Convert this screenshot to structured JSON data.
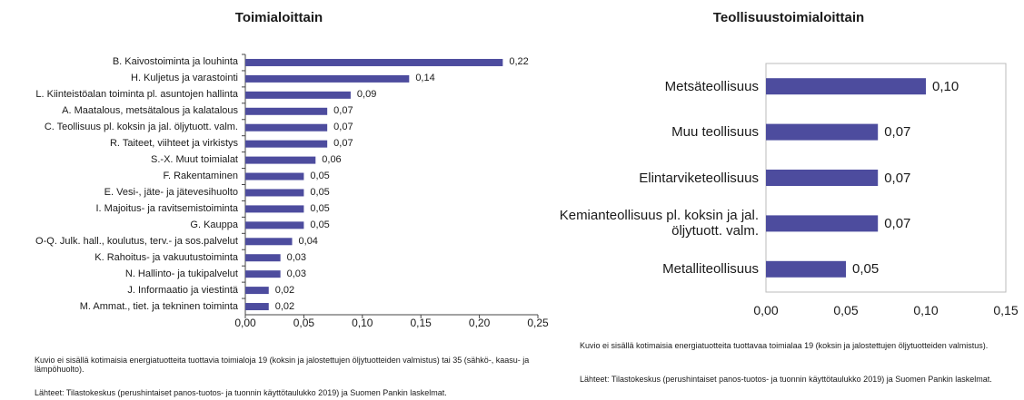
{
  "chart_data": [
    {
      "type": "bar",
      "orientation": "horizontal",
      "title": "Toimialoittain",
      "categories": [
        "B. Kaivostoiminta ja louhinta",
        "H. Kuljetus ja varastointi",
        "L. Kiinteistöalan toiminta pl. asuntojen hallinta",
        "A. Maatalous, metsätalous ja kalatalous",
        "C. Teollisuus pl. koksin ja jal. öljytuott. valm.",
        "R. Taiteet, viihteet ja virkistys",
        "S.-X. Muut toimialat",
        "F. Rakentaminen",
        "E. Vesi-, jäte- ja jätevesihuolto",
        "I. Majoitus- ja ravitsemistoiminta",
        "G. Kauppa",
        "O-Q. Julk. hall., koulutus, terv.- ja sos.palvelut",
        "K. Rahoitus- ja vakuutustoiminta",
        "N. Hallinto- ja tukipalvelut",
        "J. Informaatio ja viestintä",
        "M. Ammat., tiet. ja tekninen toiminta"
      ],
      "values": [
        0.22,
        0.14,
        0.09,
        0.07,
        0.07,
        0.07,
        0.06,
        0.05,
        0.05,
        0.05,
        0.05,
        0.04,
        0.03,
        0.03,
        0.02,
        0.02
      ],
      "value_labels": [
        "0,22",
        "0,14",
        "0,09",
        "0,07",
        "0,07",
        "0,07",
        "0,06",
        "0,05",
        "0,05",
        "0,05",
        "0,05",
        "0,04",
        "0,03",
        "0,03",
        "0,02",
        "0,02"
      ],
      "color": "#4d4c9e",
      "xlim": [
        0,
        0.25
      ],
      "xticks": [
        {
          "value": 0,
          "label": "0,00"
        },
        {
          "value": 0.05,
          "label": "0,05"
        },
        {
          "value": 0.1,
          "label": "0,10"
        },
        {
          "value": 0.15,
          "label": "0,15"
        },
        {
          "value": 0.2,
          "label": "0,20"
        },
        {
          "value": 0.25,
          "label": "0,25"
        }
      ],
      "note": "Kuvio ei sisällä kotimaisia energiatuotteita tuottavia toimialoja 19 (koksin ja jalostettujen öljytuotteiden valmistus) tai 35 (sähkö-, kaasu- ja lämpöhuolto).",
      "source": "Lähteet: Tilastokeskus (perushintaiset panos-tuotos- ja tuonnin käyttötaulukko 2019) ja Suomen Pankin laskelmat."
    },
    {
      "type": "bar",
      "orientation": "horizontal",
      "title": "Teollisuustoimialoittain",
      "categories": [
        "Metsäteollisuus",
        "Muu teollisuus",
        "Elintarviketeollisuus",
        "Kemianteollisuus pl. koksin ja jal. öljytuott. valm.",
        "Metalliteollisuus"
      ],
      "values": [
        0.1,
        0.07,
        0.07,
        0.07,
        0.05
      ],
      "value_labels": [
        "0,10",
        "0,07",
        "0,07",
        "0,07",
        "0,05"
      ],
      "color": "#4d4c9e",
      "xlim": [
        0,
        0.15
      ],
      "xticks": [
        {
          "value": 0,
          "label": "0,00"
        },
        {
          "value": 0.05,
          "label": "0,05"
        },
        {
          "value": 0.1,
          "label": "0,10"
        },
        {
          "value": 0.15,
          "label": "0,15"
        }
      ],
      "note": "Kuvio ei sisällä kotimaisia energiatuotteita tuottavaa toimialaa 19 (koksin ja jalostettujen öljytuotteiden valmistus).",
      "source": "Lähteet: Tilastokeskus (perushintaiset panos-tuotos- ja tuonnin käyttötaulukko 2019) ja Suomen Pankin laskelmat."
    }
  ]
}
